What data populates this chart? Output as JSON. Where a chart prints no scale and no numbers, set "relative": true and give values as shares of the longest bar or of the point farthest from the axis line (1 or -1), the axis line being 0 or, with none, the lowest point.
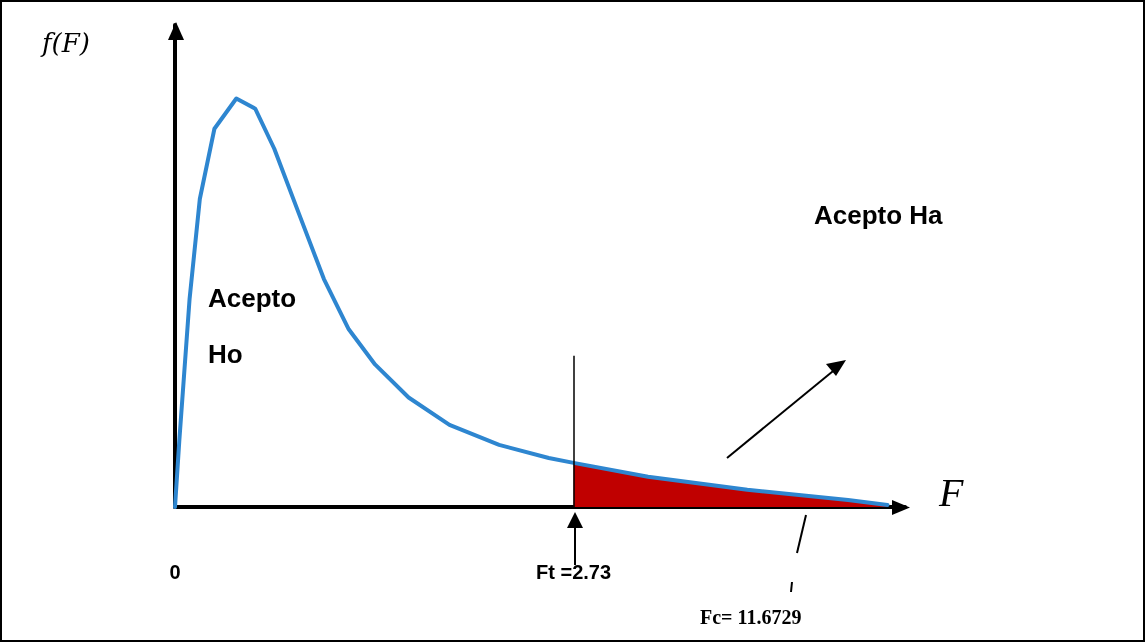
{
  "chart_data": {
    "type": "line",
    "relative": true,
    "xlabel": "F",
    "ylabel": "f(F)",
    "xlim": [
      0,
      5
    ],
    "xticks": [
      0,
      {
        "value": 2.73,
        "label": "Ft =2.73"
      }
    ],
    "series": [
      {
        "type": "line",
        "color": "#2e86d0",
        "x": [
          0,
          0.03,
          0.1,
          0.17,
          0.27,
          0.42,
          0.55,
          0.68,
          0.85,
          1.02,
          1.19,
          1.37,
          1.6,
          1.88,
          2.22,
          2.56,
          2.73,
          3.24,
          3.92,
          4.61,
          4.88
        ],
        "values": [
          0,
          0.165,
          0.51,
          0.754,
          0.926,
          1,
          0.975,
          0.877,
          0.717,
          0.558,
          0.435,
          0.349,
          0.268,
          0.201,
          0.152,
          0.12,
          0.108,
          0.074,
          0.042,
          0.017,
          0.005
        ]
      },
      {
        "type": "area",
        "color": "#c00000",
        "x": [
          2.73,
          3.24,
          3.92,
          4.61,
          4.88
        ],
        "values": [
          0.108,
          0.074,
          0.042,
          0.017,
          0.005
        ]
      }
    ],
    "ref_lines": [
      {
        "axis": "x",
        "value": 2.73,
        "color": "#000000"
      }
    ],
    "annotations": [
      "Acepto Ho",
      "Acepto Ha",
      "Fc= 11.6729"
    ],
    "grid": false,
    "marker": "none"
  }
}
